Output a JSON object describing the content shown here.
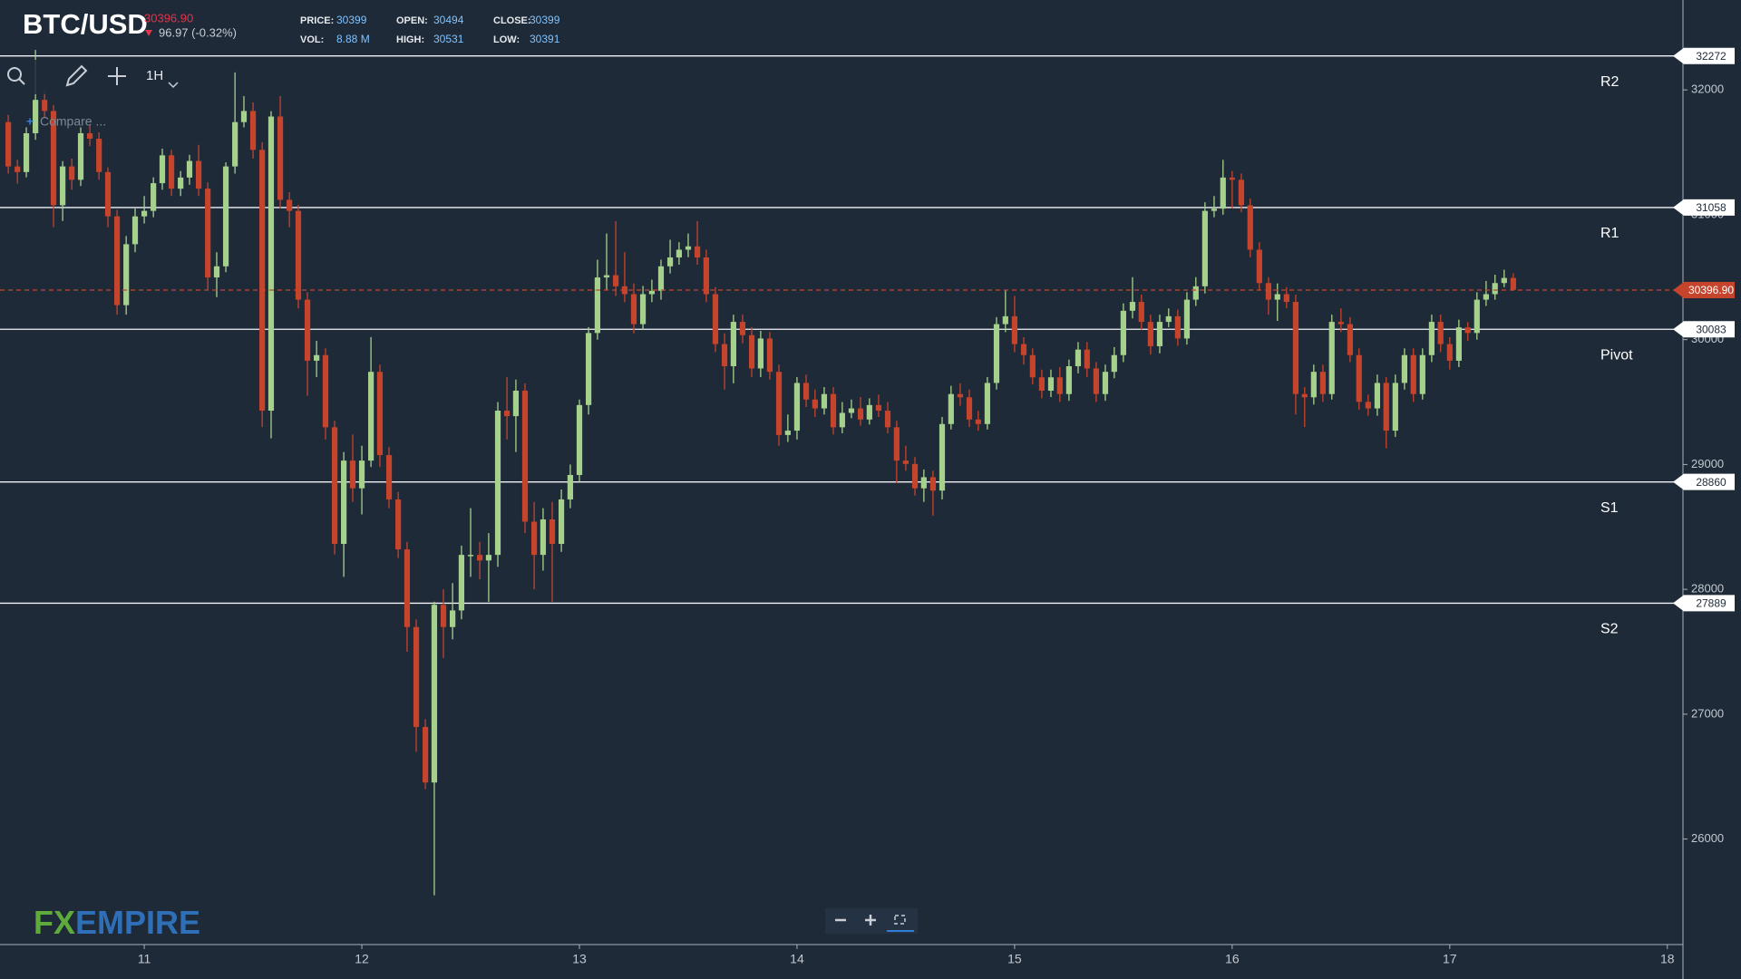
{
  "header": {
    "symbol": "BTC/USD",
    "change": "96.97 (-0.32%)",
    "stats": [
      {
        "label": "PRICE:",
        "value": "30399"
      },
      {
        "label": "OPEN:",
        "value": "30494"
      },
      {
        "label": "CLOSE:",
        "value": "30399"
      },
      {
        "label": "VOL:",
        "value": "8.88 M"
      },
      {
        "label": "HIGH:",
        "value": "30531"
      },
      {
        "label": "LOW:",
        "value": "30391"
      }
    ]
  },
  "toolbar": {
    "interval": "1H",
    "compare": "Compare ..."
  },
  "logo": {
    "first": "FX",
    "second": "EMPIRE"
  },
  "chart_data": {
    "type": "candlestick",
    "up_color": "#a6d18c",
    "down_color": "#c6432c",
    "y_axis": "right",
    "grid": false,
    "xlim": [
      10.337,
      18.051
    ],
    "xticks": [
      11,
      12,
      13,
      14,
      15,
      16,
      17,
      18
    ],
    "ylim": [
      25155,
      32720
    ],
    "yticks": [
      26000,
      27000,
      28000,
      29000,
      30000,
      31000,
      32000
    ],
    "current_price": {
      "value": 30396.9,
      "label": "30396.90",
      "color": "#c6432c"
    },
    "levels": [
      {
        "name": "R2",
        "value": 32272
      },
      {
        "name": "R1",
        "value": 31058
      },
      {
        "name": "Pivot",
        "value": 30083
      },
      {
        "name": "S1",
        "value": 28860
      },
      {
        "name": "S2",
        "value": 27889
      }
    ],
    "x": [
      10.375,
      10.417,
      10.458,
      10.5,
      10.542,
      10.583,
      10.625,
      10.667,
      10.708,
      10.75,
      10.792,
      10.833,
      10.875,
      10.917,
      10.958,
      11,
      11.042,
      11.083,
      11.125,
      11.167,
      11.208,
      11.25,
      11.292,
      11.333,
      11.375,
      11.417,
      11.458,
      11.5,
      11.542,
      11.583,
      11.625,
      11.667,
      11.708,
      11.75,
      11.792,
      11.833,
      11.875,
      11.917,
      11.958,
      12,
      12.042,
      12.083,
      12.125,
      12.167,
      12.208,
      12.25,
      12.292,
      12.333,
      12.375,
      12.417,
      12.458,
      12.5,
      12.542,
      12.583,
      12.625,
      12.667,
      12.708,
      12.75,
      12.792,
      12.833,
      12.875,
      12.917,
      12.958,
      13,
      13.042,
      13.083,
      13.125,
      13.167,
      13.208,
      13.25,
      13.292,
      13.333,
      13.375,
      13.417,
      13.458,
      13.5,
      13.542,
      13.583,
      13.625,
      13.667,
      13.708,
      13.75,
      13.792,
      13.833,
      13.875,
      13.917,
      13.958,
      14,
      14.042,
      14.083,
      14.125,
      14.167,
      14.208,
      14.25,
      14.292,
      14.333,
      14.375,
      14.417,
      14.458,
      14.5,
      14.542,
      14.583,
      14.625,
      14.667,
      14.708,
      14.75,
      14.792,
      14.833,
      14.875,
      14.917,
      14.958,
      15,
      15.042,
      15.083,
      15.125,
      15.167,
      15.208,
      15.25,
      15.292,
      15.333,
      15.375,
      15.417,
      15.458,
      15.5,
      15.542,
      15.583,
      15.625,
      15.667,
      15.708,
      15.75,
      15.792,
      15.833,
      15.875,
      15.917,
      15.958,
      16,
      16.042,
      16.083,
      16.125,
      16.167,
      16.208,
      16.25,
      16.292,
      16.333,
      16.375,
      16.417,
      16.458,
      16.5,
      16.542,
      16.583,
      16.625,
      16.667,
      16.708,
      16.75,
      16.792,
      16.833,
      16.875,
      16.917,
      16.958,
      17,
      17.042,
      17.083,
      17.125,
      17.167,
      17.208,
      17.25,
      17.292
    ],
    "open": [
      31742,
      31387,
      31342,
      31653,
      31920,
      31831,
      31076,
      31387,
      31280,
      31653,
      31609,
      31342,
      30987,
      30276,
      30764,
      30987,
      31031,
      31253,
      31476,
      31209,
      31298,
      31431,
      31209,
      30498,
      30587,
      31387,
      31742,
      31831,
      31520,
      29431,
      31787,
      31120,
      31031,
      30320,
      29831,
      29876,
      29298,
      28364,
      29031,
      28809,
      29031,
      29742,
      29075,
      28720,
      28320,
      27698,
      26898,
      26453,
      27876,
      27698,
      27831,
      28276,
      28276,
      28231,
      28276,
      29431,
      29387,
      29591,
      28542,
      28276,
      28560,
      28364,
      28720,
      28916,
      29476,
      30053,
      30498,
      30516,
      30427,
      30364,
      30124,
      30364,
      30391,
      30587,
      30658,
      30720,
      30747,
      30658,
      30364,
      29964,
      29787,
      30142,
      30036,
      29769,
      30009,
      29742,
      29236,
      29271,
      29653,
      29520,
      29449,
      29564,
      29298,
      29413,
      29449,
      29360,
      29476,
      29431,
      29298,
      29031,
      29004,
      28809,
      28898,
      28791,
      29324,
      29564,
      29538,
      29360,
      29324,
      29653,
      30124,
      30187,
      29964,
      29876,
      29698,
      29591,
      29698,
      29564,
      29787,
      29920,
      29769,
      29564,
      29742,
      29876,
      30231,
      30302,
      30142,
      29947,
      30142,
      30187,
      30009,
      30320,
      30427,
      31031,
      31049,
      31298,
      31280,
      31076,
      30720,
      30453,
      30320,
      30364,
      30302,
      29564,
      29538,
      29742,
      29564,
      30142,
      30124,
      29876,
      29502,
      29449,
      29653,
      29271,
      29653,
      29876,
      29564,
      29876,
      30142,
      29964,
      29831,
      30098,
      30053,
      30320,
      30364,
      30453,
      30494
    ],
    "high": [
      31800,
      31440,
      31700,
      32320,
      32000,
      31880,
      31430,
      31450,
      31700,
      31720,
      31660,
      31380,
      31040,
      30830,
      31050,
      31150,
      31300,
      31530,
      31520,
      31350,
      31480,
      31560,
      31260,
      30700,
      31420,
      32140,
      31950,
      31900,
      31580,
      31830,
      31950,
      31180,
      31080,
      30380,
      29990,
      29930,
      29350,
      29100,
      29240,
      29150,
      30020,
      29800,
      29140,
      28780,
      28380,
      27760,
      26960,
      27900,
      28000,
      28050,
      28350,
      28650,
      28380,
      28450,
      29500,
      29700,
      29680,
      29650,
      28700,
      28650,
      28700,
      28800,
      29000,
      29520,
      30100,
      30640,
      30850,
      30950,
      30700,
      30450,
      30430,
      30480,
      30640,
      30800,
      30780,
      30850,
      30950,
      30720,
      30420,
      30050,
      30200,
      30200,
      30100,
      30070,
      30060,
      29800,
      29400,
      29700,
      29720,
      29600,
      29620,
      29620,
      29500,
      29520,
      29540,
      29530,
      29560,
      29500,
      29350,
      29150,
      29060,
      28960,
      28950,
      29380,
      29630,
      29650,
      29600,
      29430,
      29700,
      30180,
      30400,
      30350,
      30020,
      29930,
      29760,
      29760,
      29780,
      29840,
      29980,
      29980,
      29820,
      29800,
      29940,
      30290,
      30500,
      30360,
      30200,
      30200,
      30250,
      30240,
      30380,
      30500,
      31100,
      31150,
      31440,
      31350,
      31330,
      31130,
      30780,
      30500,
      30450,
      30420,
      30360,
      29620,
      29800,
      29800,
      30200,
      30250,
      30180,
      29930,
      29560,
      29720,
      29700,
      29720,
      29930,
      29930,
      29930,
      30200,
      30200,
      30020,
      30160,
      30140,
      30380,
      30470,
      30520,
      30560,
      30531
    ],
    "low": [
      31330,
      31250,
      31300,
      31600,
      31780,
      30900,
      30950,
      31200,
      31230,
      31550,
      31280,
      30900,
      30200,
      30200,
      30700,
      30930,
      30980,
      31200,
      31150,
      31150,
      31240,
      31150,
      30400,
      30340,
      30540,
      31330,
      31700,
      31450,
      29300,
      29210,
      31050,
      30900,
      30250,
      29550,
      29700,
      29200,
      28280,
      28100,
      28700,
      28600,
      28980,
      28980,
      28650,
      28250,
      27500,
      26700,
      26400,
      25550,
      27450,
      27600,
      27760,
      28100,
      28080,
      27900,
      28180,
      29200,
      29100,
      28450,
      28000,
      28150,
      27900,
      28300,
      28650,
      28860,
      29400,
      30000,
      30400,
      30350,
      30300,
      30050,
      30080,
      30300,
      30320,
      30530,
      30600,
      30660,
      30600,
      30300,
      29900,
      29600,
      29650,
      29970,
      29700,
      29700,
      29680,
      29150,
      29180,
      29200,
      29460,
      29380,
      29400,
      29240,
      29250,
      29370,
      29310,
      29320,
      29380,
      29250,
      28850,
      28950,
      28750,
      28700,
      28590,
      28720,
      29280,
      29470,
      29300,
      29270,
      29280,
      29600,
      30060,
      29900,
      29800,
      29640,
      29530,
      29540,
      29500,
      29510,
      29730,
      29700,
      29500,
      29510,
      29690,
      29820,
      30170,
      30080,
      29880,
      29890,
      30100,
      29950,
      29960,
      30270,
      30370,
      30980,
      31000,
      31050,
      31020,
      30660,
      30400,
      30200,
      30150,
      30250,
      29400,
      29300,
      29480,
      29500,
      29520,
      30060,
      29820,
      29440,
      29390,
      29390,
      29130,
      29220,
      29600,
      29500,
      29520,
      29820,
      29900,
      29760,
      29780,
      29990,
      30000,
      30270,
      30320,
      30420,
      30391
    ],
    "close": [
      31387,
      31342,
      31653,
      31920,
      31831,
      31076,
      31387,
      31280,
      31653,
      31609,
      31342,
      30987,
      30276,
      30764,
      30987,
      31031,
      31253,
      31476,
      31209,
      31298,
      31431,
      31209,
      30498,
      30587,
      31387,
      31742,
      31831,
      31520,
      29431,
      31787,
      31120,
      31031,
      30320,
      29831,
      29876,
      29298,
      28364,
      29031,
      28809,
      29031,
      29742,
      29075,
      28720,
      28320,
      27698,
      26898,
      26453,
      27876,
      27698,
      27831,
      28276,
      28276,
      28231,
      28276,
      29431,
      29387,
      29591,
      28542,
      28276,
      28560,
      28364,
      28720,
      28916,
      29476,
      30053,
      30498,
      30516,
      30427,
      30364,
      30124,
      30364,
      30391,
      30587,
      30658,
      30720,
      30747,
      30658,
      30364,
      29964,
      29787,
      30142,
      30036,
      29769,
      30009,
      29742,
      29236,
      29271,
      29653,
      29520,
      29449,
      29564,
      29298,
      29413,
      29449,
      29360,
      29476,
      29431,
      29298,
      29031,
      29004,
      28809,
      28898,
      28791,
      29324,
      29564,
      29538,
      29360,
      29324,
      29653,
      30124,
      30187,
      29964,
      29876,
      29698,
      29591,
      29698,
      29564,
      29787,
      29920,
      29769,
      29564,
      29742,
      29876,
      30231,
      30302,
      30142,
      29947,
      30142,
      30187,
      30009,
      30320,
      30427,
      31031,
      31049,
      31298,
      31280,
      31076,
      30720,
      30453,
      30320,
      30364,
      30302,
      29564,
      29538,
      29742,
      29564,
      30142,
      30124,
      29876,
      29502,
      29449,
      29653,
      29271,
      29653,
      29876,
      29564,
      29876,
      30142,
      29964,
      29831,
      30098,
      30053,
      30320,
      30364,
      30453,
      30494,
      30399
    ]
  }
}
